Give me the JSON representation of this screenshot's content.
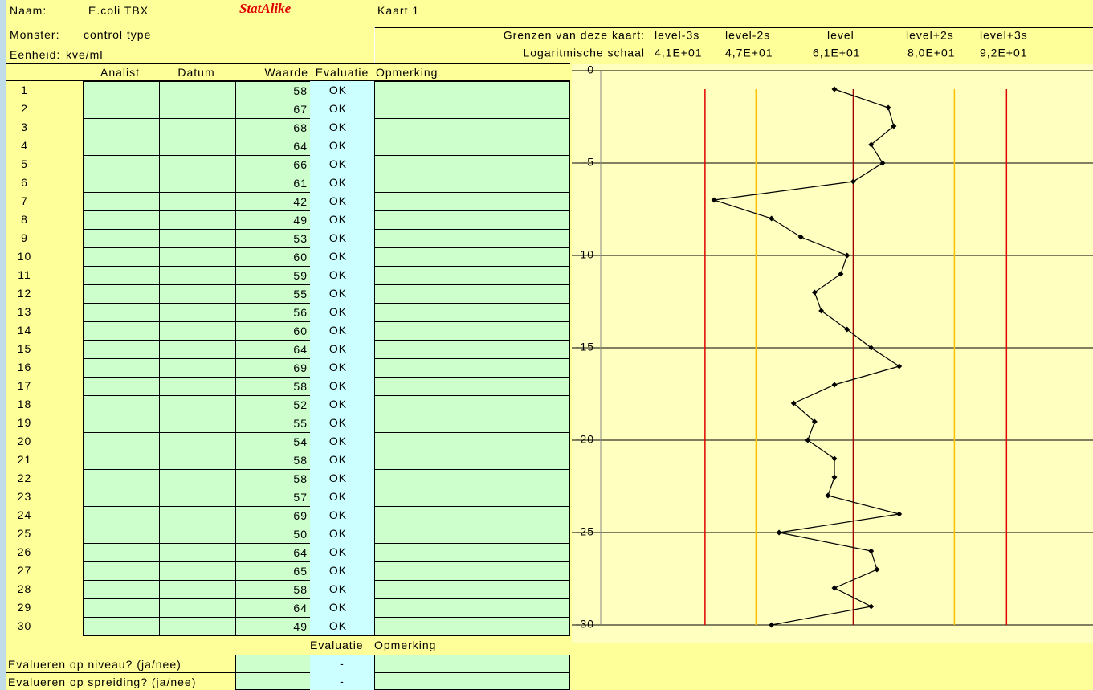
{
  "header": {
    "naam_label": "Naam:",
    "naam": "E.coli TBX",
    "brand": "StatAlike",
    "kaart": "Kaart 1",
    "monster_label": "Monster:",
    "monster": "control type",
    "eenheid_label": "Eenheid:",
    "eenheid": "kve/ml"
  },
  "table": {
    "columns": [
      "Analist",
      "Datum",
      "Waarde",
      "Evaluatie",
      "Opmerking"
    ],
    "row_numbers": [
      1,
      2,
      3,
      4,
      5,
      6,
      7,
      8,
      9,
      10,
      11,
      12,
      13,
      14,
      15,
      16,
      17,
      18,
      19,
      20,
      21,
      22,
      23,
      24,
      25,
      26,
      27,
      28,
      29,
      30
    ],
    "evaluations": [
      "OK",
      "OK",
      "OK",
      "OK",
      "OK",
      "OK",
      "OK",
      "OK",
      "OK",
      "OK",
      "OK",
      "OK",
      "OK",
      "OK",
      "OK",
      "OK",
      "OK",
      "OK",
      "OK",
      "OK",
      "OK",
      "OK",
      "OK",
      "OK",
      "OK",
      "OK",
      "OK",
      "OK",
      "OK",
      "OK"
    ]
  },
  "chart_data": {
    "type": "line",
    "limits_title": "Grenzen van deze kaart:",
    "scale_label": "Logaritmische schaal",
    "limits": [
      {
        "name": "level-3s",
        "value": 41,
        "label": "4,1E+01",
        "color": "#e00000"
      },
      {
        "name": "level-2s",
        "value": 47,
        "label": "4,7E+01",
        "color": "#ffc000"
      },
      {
        "name": "level",
        "value": 61,
        "label": "6,1E+01",
        "color": "#a00000"
      },
      {
        "name": "level+2s",
        "value": 80,
        "label": "8,0E+01",
        "color": "#ffc000"
      },
      {
        "name": "level+3s",
        "value": 92,
        "label": "9,2E+01",
        "color": "#e00000"
      }
    ],
    "x": [
      58,
      67,
      68,
      64,
      66,
      61,
      42,
      49,
      53,
      60,
      59,
      55,
      56,
      60,
      64,
      69,
      58,
      52,
      55,
      54,
      58,
      58,
      57,
      69,
      50,
      64,
      65,
      58,
      64,
      49
    ],
    "y": [
      -1,
      -2,
      -3,
      -4,
      -5,
      -6,
      -7,
      -8,
      -9,
      -10,
      -11,
      -12,
      -13,
      -14,
      -15,
      -16,
      -17,
      -18,
      -19,
      -20,
      -21,
      -22,
      -23,
      -24,
      -25,
      -26,
      -27,
      -28,
      -29,
      -30
    ],
    "xlim": [
      31,
      116
    ],
    "log_x": true,
    "ylim": [
      -30,
      0
    ],
    "yticks": [
      0,
      -5,
      -10,
      -15,
      -20,
      -25,
      -30
    ],
    "grid": true,
    "color": "#000000"
  },
  "footer": {
    "columns": [
      "Evaluatie",
      "Opmerking"
    ],
    "rows": [
      {
        "label": "Evalueren op niveau? (ja/nee)",
        "evaluation": "-"
      },
      {
        "label": "Evalueren op spreiding? (ja/nee)",
        "evaluation": "-"
      }
    ]
  }
}
